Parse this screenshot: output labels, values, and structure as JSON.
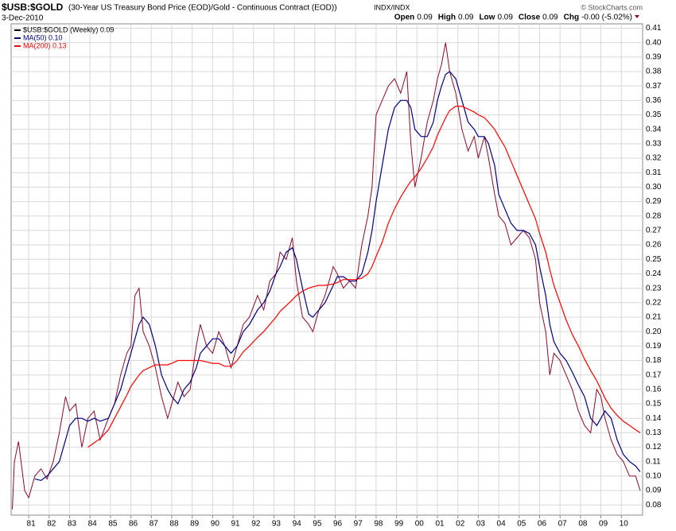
{
  "chart_data": {
    "type": "line",
    "title": "$USB:$GOLD",
    "subtitle": "(30-Year US Treasury Bond Price (EOD)/Gold - Continuous Contract (EOD))",
    "exchange": "INDX/INDX",
    "date": "3-Dec-2010",
    "quote": [
      {
        "label": "Open",
        "value": 0.09
      },
      {
        "label": "High",
        "value": 0.09
      },
      {
        "label": "Low",
        "value": 0.09
      },
      {
        "label": "Close",
        "value": 0.09
      },
      {
        "label": "Chg",
        "value": "-0.00 (-5.02%)"
      }
    ],
    "credit": "© StockCharts.com",
    "x": [
      1980.2,
      1980.3,
      1980.5,
      1980.8,
      1981.0,
      1981.3,
      1981.6,
      1981.9,
      1982.2,
      1982.5,
      1982.8,
      1983.0,
      1983.3,
      1983.6,
      1983.9,
      1984.2,
      1984.5,
      1984.9,
      1985.2,
      1985.5,
      1985.8,
      1986.0,
      1986.2,
      1986.4,
      1986.6,
      1986.9,
      1987.2,
      1987.5,
      1987.8,
      1988.0,
      1988.3,
      1988.6,
      1988.9,
      1989.2,
      1989.4,
      1989.7,
      1990.0,
      1990.3,
      1990.6,
      1990.9,
      1991.2,
      1991.5,
      1991.8,
      1992.2,
      1992.5,
      1992.8,
      1993.1,
      1993.3,
      1993.6,
      1993.9,
      1994.1,
      1994.4,
      1994.7,
      1994.9,
      1995.2,
      1995.5,
      1995.9,
      1996.1,
      1996.4,
      1996.7,
      1997.0,
      1997.3,
      1997.6,
      1997.8,
      1998.0,
      1998.3,
      1998.6,
      1998.9,
      1999.2,
      1999.5,
      1999.7,
      1999.9,
      2000.2,
      2000.5,
      2000.8,
      2001.0,
      2001.2,
      2001.4,
      2001.6,
      2001.9,
      2002.2,
      2002.5,
      2002.8,
      2003.0,
      2003.3,
      2003.5,
      2003.8,
      2004.0,
      2004.3,
      2004.6,
      2004.9,
      2005.2,
      2005.5,
      2005.8,
      2006.0,
      2006.3,
      2006.5,
      2006.7,
      2007.0,
      2007.3,
      2007.6,
      2007.9,
      2008.2,
      2008.5,
      2008.8,
      2009.0,
      2009.2,
      2009.5,
      2009.8,
      2010.1,
      2010.4,
      2010.7,
      2010.92
    ],
    "series": [
      {
        "name": "$USB:$GOLD (Weekly) 0.09",
        "color": "#8b0a2a",
        "width": 1,
        "values": [
          0.077,
          0.11,
          0.124,
          0.09,
          0.085,
          0.1,
          0.105,
          0.098,
          0.11,
          0.13,
          0.155,
          0.145,
          0.15,
          0.12,
          0.14,
          0.145,
          0.125,
          0.14,
          0.15,
          0.17,
          0.185,
          0.19,
          0.225,
          0.23,
          0.2,
          0.19,
          0.175,
          0.155,
          0.14,
          0.15,
          0.165,
          0.155,
          0.16,
          0.19,
          0.205,
          0.19,
          0.185,
          0.2,
          0.19,
          0.175,
          0.19,
          0.205,
          0.21,
          0.225,
          0.215,
          0.235,
          0.24,
          0.255,
          0.25,
          0.265,
          0.235,
          0.21,
          0.205,
          0.2,
          0.215,
          0.225,
          0.245,
          0.24,
          0.23,
          0.235,
          0.23,
          0.26,
          0.28,
          0.3,
          0.35,
          0.36,
          0.37,
          0.375,
          0.365,
          0.38,
          0.33,
          0.3,
          0.32,
          0.345,
          0.36,
          0.375,
          0.385,
          0.4,
          0.38,
          0.365,
          0.34,
          0.325,
          0.335,
          0.32,
          0.335,
          0.32,
          0.295,
          0.28,
          0.275,
          0.26,
          0.265,
          0.27,
          0.265,
          0.25,
          0.22,
          0.2,
          0.17,
          0.185,
          0.18,
          0.17,
          0.16,
          0.145,
          0.135,
          0.13,
          0.16,
          0.155,
          0.14,
          0.125,
          0.115,
          0.11,
          0.1,
          0.1,
          0.09
        ]
      },
      {
        "name": "MA(50) 0.10",
        "color": "#000080",
        "width": 1.2,
        "values": [
          null,
          null,
          null,
          null,
          null,
          0.098,
          0.097,
          0.1,
          0.105,
          0.11,
          0.125,
          0.135,
          0.14,
          0.14,
          0.138,
          0.14,
          0.138,
          0.14,
          0.15,
          0.16,
          0.175,
          0.185,
          0.195,
          0.205,
          0.21,
          0.205,
          0.19,
          0.17,
          0.16,
          0.155,
          0.15,
          0.16,
          0.165,
          0.175,
          0.185,
          0.19,
          0.195,
          0.195,
          0.19,
          0.185,
          0.19,
          0.2,
          0.205,
          0.215,
          0.22,
          0.228,
          0.24,
          0.245,
          0.255,
          0.258,
          0.25,
          0.23,
          0.212,
          0.21,
          0.215,
          0.22,
          0.232,
          0.238,
          0.238,
          0.235,
          0.235,
          0.24,
          0.255,
          0.27,
          0.29,
          0.315,
          0.34,
          0.355,
          0.36,
          0.36,
          0.355,
          0.34,
          0.335,
          0.335,
          0.345,
          0.36,
          0.37,
          0.378,
          0.38,
          0.375,
          0.36,
          0.345,
          0.34,
          0.335,
          0.335,
          0.33,
          0.315,
          0.295,
          0.285,
          0.275,
          0.27,
          0.27,
          0.268,
          0.26,
          0.245,
          0.225,
          0.205,
          0.193,
          0.185,
          0.18,
          0.172,
          0.163,
          0.155,
          0.14,
          0.135,
          0.14,
          0.145,
          0.14,
          0.125,
          0.115,
          0.11,
          0.107,
          0.103
        ]
      },
      {
        "name": "MA(200) 0.13",
        "color": "#ff0000",
        "width": 1.2,
        "values": [
          null,
          null,
          null,
          null,
          null,
          null,
          null,
          null,
          null,
          null,
          null,
          null,
          null,
          null,
          0.12,
          0.123,
          0.126,
          0.132,
          0.14,
          0.148,
          0.156,
          0.162,
          0.166,
          0.17,
          0.173,
          0.175,
          0.177,
          0.177,
          0.177,
          0.178,
          0.18,
          0.18,
          0.18,
          0.18,
          0.18,
          0.179,
          0.178,
          0.178,
          0.176,
          0.176,
          0.18,
          0.186,
          0.19,
          0.196,
          0.2,
          0.205,
          0.21,
          0.214,
          0.218,
          0.222,
          0.225,
          0.228,
          0.23,
          0.231,
          0.232,
          0.232,
          0.233,
          0.234,
          0.236,
          0.236,
          0.236,
          0.237,
          0.24,
          0.245,
          0.252,
          0.262,
          0.275,
          0.285,
          0.293,
          0.3,
          0.304,
          0.307,
          0.313,
          0.32,
          0.328,
          0.336,
          0.342,
          0.348,
          0.353,
          0.356,
          0.356,
          0.354,
          0.352,
          0.35,
          0.348,
          0.345,
          0.34,
          0.335,
          0.328,
          0.318,
          0.308,
          0.298,
          0.288,
          0.278,
          0.268,
          0.255,
          0.243,
          0.232,
          0.22,
          0.208,
          0.198,
          0.19,
          0.181,
          0.173,
          0.166,
          0.16,
          0.154,
          0.147,
          0.142,
          0.138,
          0.135,
          0.132,
          0.13
        ]
      }
    ],
    "xlim": [
      1980.14,
      2011.04
    ],
    "xticks": [
      {
        "value": 1981,
        "label": "81"
      },
      {
        "value": 1982,
        "label": "82"
      },
      {
        "value": 1983,
        "label": "83"
      },
      {
        "value": 1984,
        "label": "84"
      },
      {
        "value": 1985,
        "label": "85"
      },
      {
        "value": 1986,
        "label": "86"
      },
      {
        "value": 1987,
        "label": "87"
      },
      {
        "value": 1988,
        "label": "88"
      },
      {
        "value": 1989,
        "label": "89"
      },
      {
        "value": 1990,
        "label": "90"
      },
      {
        "value": 1991,
        "label": "91"
      },
      {
        "value": 1992,
        "label": "92"
      },
      {
        "value": 1993,
        "label": "93"
      },
      {
        "value": 1994,
        "label": "94"
      },
      {
        "value": 1995,
        "label": "95"
      },
      {
        "value": 1996,
        "label": "96"
      },
      {
        "value": 1997,
        "label": "97"
      },
      {
        "value": 1998,
        "label": "98"
      },
      {
        "value": 1999,
        "label": "99"
      },
      {
        "value": 2000,
        "label": "00"
      },
      {
        "value": 2001,
        "label": "01"
      },
      {
        "value": 2002,
        "label": "02"
      },
      {
        "value": 2003,
        "label": "03"
      },
      {
        "value": 2004,
        "label": "04"
      },
      {
        "value": 2005,
        "label": "05"
      },
      {
        "value": 2006,
        "label": "06"
      },
      {
        "value": 2007,
        "label": "07"
      },
      {
        "value": 2008,
        "label": "08"
      },
      {
        "value": 2009,
        "label": "09"
      },
      {
        "value": 2010,
        "label": "10"
      }
    ],
    "ylim": [
      0.073,
      0.413
    ],
    "yticks": [
      0.08,
      0.09,
      {
        "value": 0.1,
        "label": "0.10"
      },
      0.11,
      0.12,
      0.13,
      0.14,
      0.15,
      0.16,
      0.17,
      0.18,
      0.19,
      {
        "value": 0.2,
        "label": "0.20"
      },
      0.21,
      0.22,
      0.23,
      0.24,
      0.25,
      0.26,
      0.27,
      0.28,
      0.29,
      {
        "value": 0.3,
        "label": "0.30"
      },
      0.31,
      0.32,
      0.33,
      0.34,
      0.35,
      0.36,
      0.37,
      0.38,
      0.39,
      {
        "value": 0.4,
        "label": "0.40"
      },
      0.41
    ],
    "grid": true,
    "legend": "top-left"
  }
}
